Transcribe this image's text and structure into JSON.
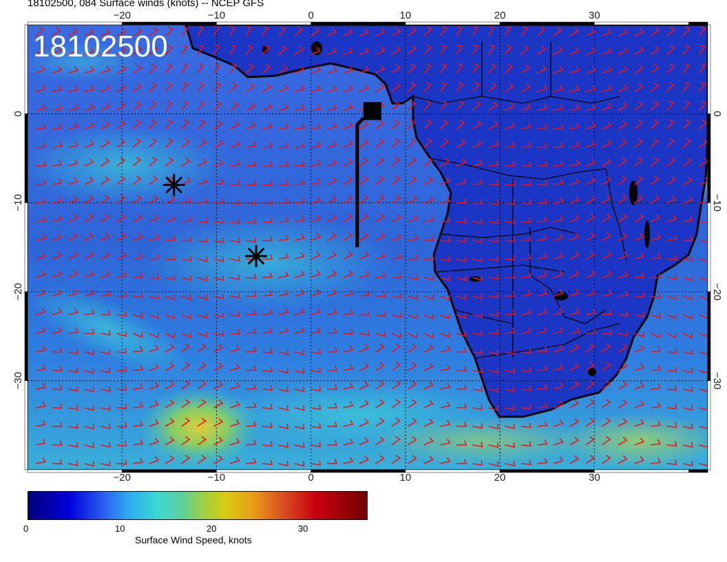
{
  "header": {
    "title": "18102500, 084 Surface winds (knots) -- NCEP GFS"
  },
  "map": {
    "overlay_label": "18102500",
    "lon_ticks": [
      {
        "value": -20,
        "label": "−20"
      },
      {
        "value": -10,
        "label": "−10"
      },
      {
        "value": 0,
        "label": "0"
      },
      {
        "value": 10,
        "label": "10"
      },
      {
        "value": 20,
        "label": "20"
      },
      {
        "value": 30,
        "label": "30"
      }
    ],
    "lat_ticks": [
      {
        "value": 0,
        "label": "0"
      },
      {
        "value": -10,
        "label": "−10"
      },
      {
        "value": -20,
        "label": "−20"
      },
      {
        "value": -30,
        "label": "−30"
      }
    ],
    "lon_range": [
      -30,
      42
    ],
    "lat_range": [
      -40,
      10
    ],
    "markers": [
      {
        "type": "asterisk",
        "lon": -14.5,
        "lat": -8
      },
      {
        "type": "asterisk",
        "lon": -5.8,
        "lat": -16
      }
    ],
    "square_marker": {
      "lon": 6.5,
      "lat": 0.3
    },
    "colors": {
      "ocean_base": "#2a52d8",
      "land": "#1a34c0",
      "coastline": "#000000",
      "barb": "#e8161a",
      "grid": "#000000"
    }
  },
  "colorbar": {
    "title": "Surface Wind Speed, knots",
    "ticks": [
      {
        "value": 0,
        "label": "0"
      },
      {
        "value": 10,
        "label": "10"
      },
      {
        "value": 20,
        "label": "20"
      },
      {
        "value": 30,
        "label": "30"
      }
    ],
    "range": [
      0,
      37
    ]
  }
}
